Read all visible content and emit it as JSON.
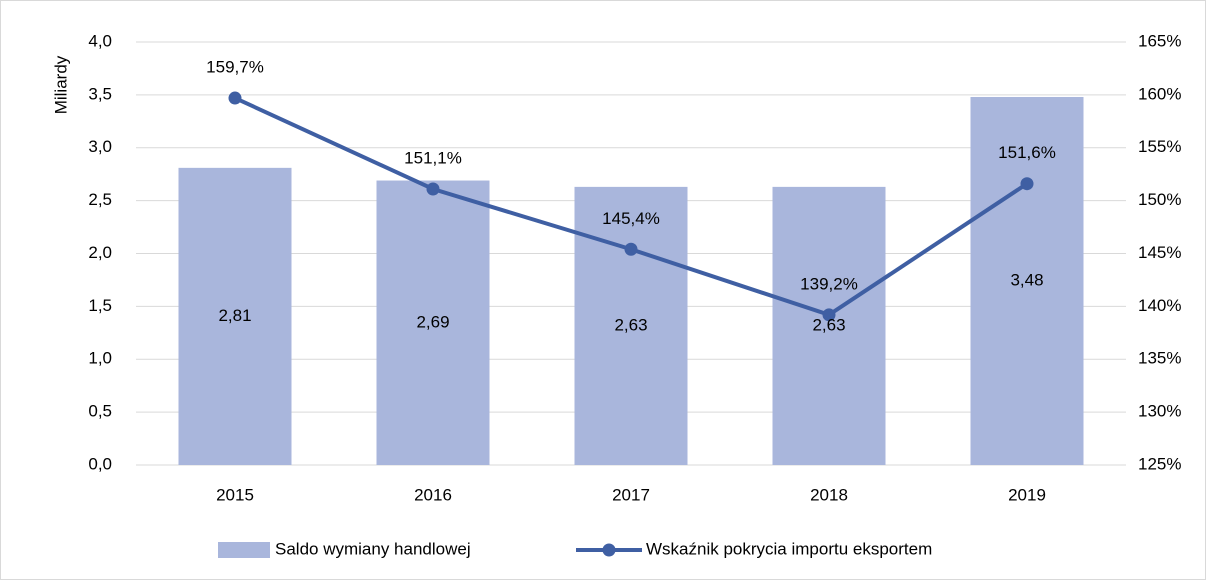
{
  "chart_data": {
    "type": "bar",
    "categories": [
      "2015",
      "2016",
      "2017",
      "2018",
      "2019"
    ],
    "y_label": "Miliardy",
    "series": [
      {
        "name": "Saldo wymiany handlowej",
        "type": "bar",
        "color": "#a9b6dc",
        "values": [
          2.81,
          2.69,
          2.63,
          2.63,
          3.48
        ],
        "value_labels": [
          "2,81",
          "2,69",
          "2,63",
          "2,63",
          "3,48"
        ]
      },
      {
        "name": "Wskaźnik pokrycia importu eksportem",
        "type": "line",
        "axis": "y2",
        "color": "#3f5fa3",
        "values": [
          159.7,
          151.1,
          145.4,
          139.2,
          151.6
        ],
        "value_labels": [
          "159,7%",
          "151,1%",
          "145,4%",
          "139,2%",
          "151,6%"
        ]
      }
    ],
    "ylim": [
      0,
      4
    ],
    "yticks": [
      {
        "value": 0,
        "label": "0,0"
      },
      {
        "value": 0.5,
        "label": "0,5"
      },
      {
        "value": 1,
        "label": "1,0"
      },
      {
        "value": 1.5,
        "label": "1,5"
      },
      {
        "value": 2,
        "label": "2,0"
      },
      {
        "value": 2.5,
        "label": "2,5"
      },
      {
        "value": 3,
        "label": "3,0"
      },
      {
        "value": 3.5,
        "label": "3,5"
      },
      {
        "value": 4,
        "label": "4,0"
      }
    ],
    "y2lim": [
      125,
      165
    ],
    "y2ticks": [
      {
        "value": 125,
        "label": "125%"
      },
      {
        "value": 130,
        "label": "130%"
      },
      {
        "value": 135,
        "label": "135%"
      },
      {
        "value": 140,
        "label": "140%"
      },
      {
        "value": 145,
        "label": "145%"
      },
      {
        "value": 150,
        "label": "150%"
      },
      {
        "value": 155,
        "label": "155%"
      },
      {
        "value": 160,
        "label": "160%"
      },
      {
        "value": 165,
        "label": "165%"
      }
    ],
    "grid": true,
    "legend": "bottom"
  }
}
